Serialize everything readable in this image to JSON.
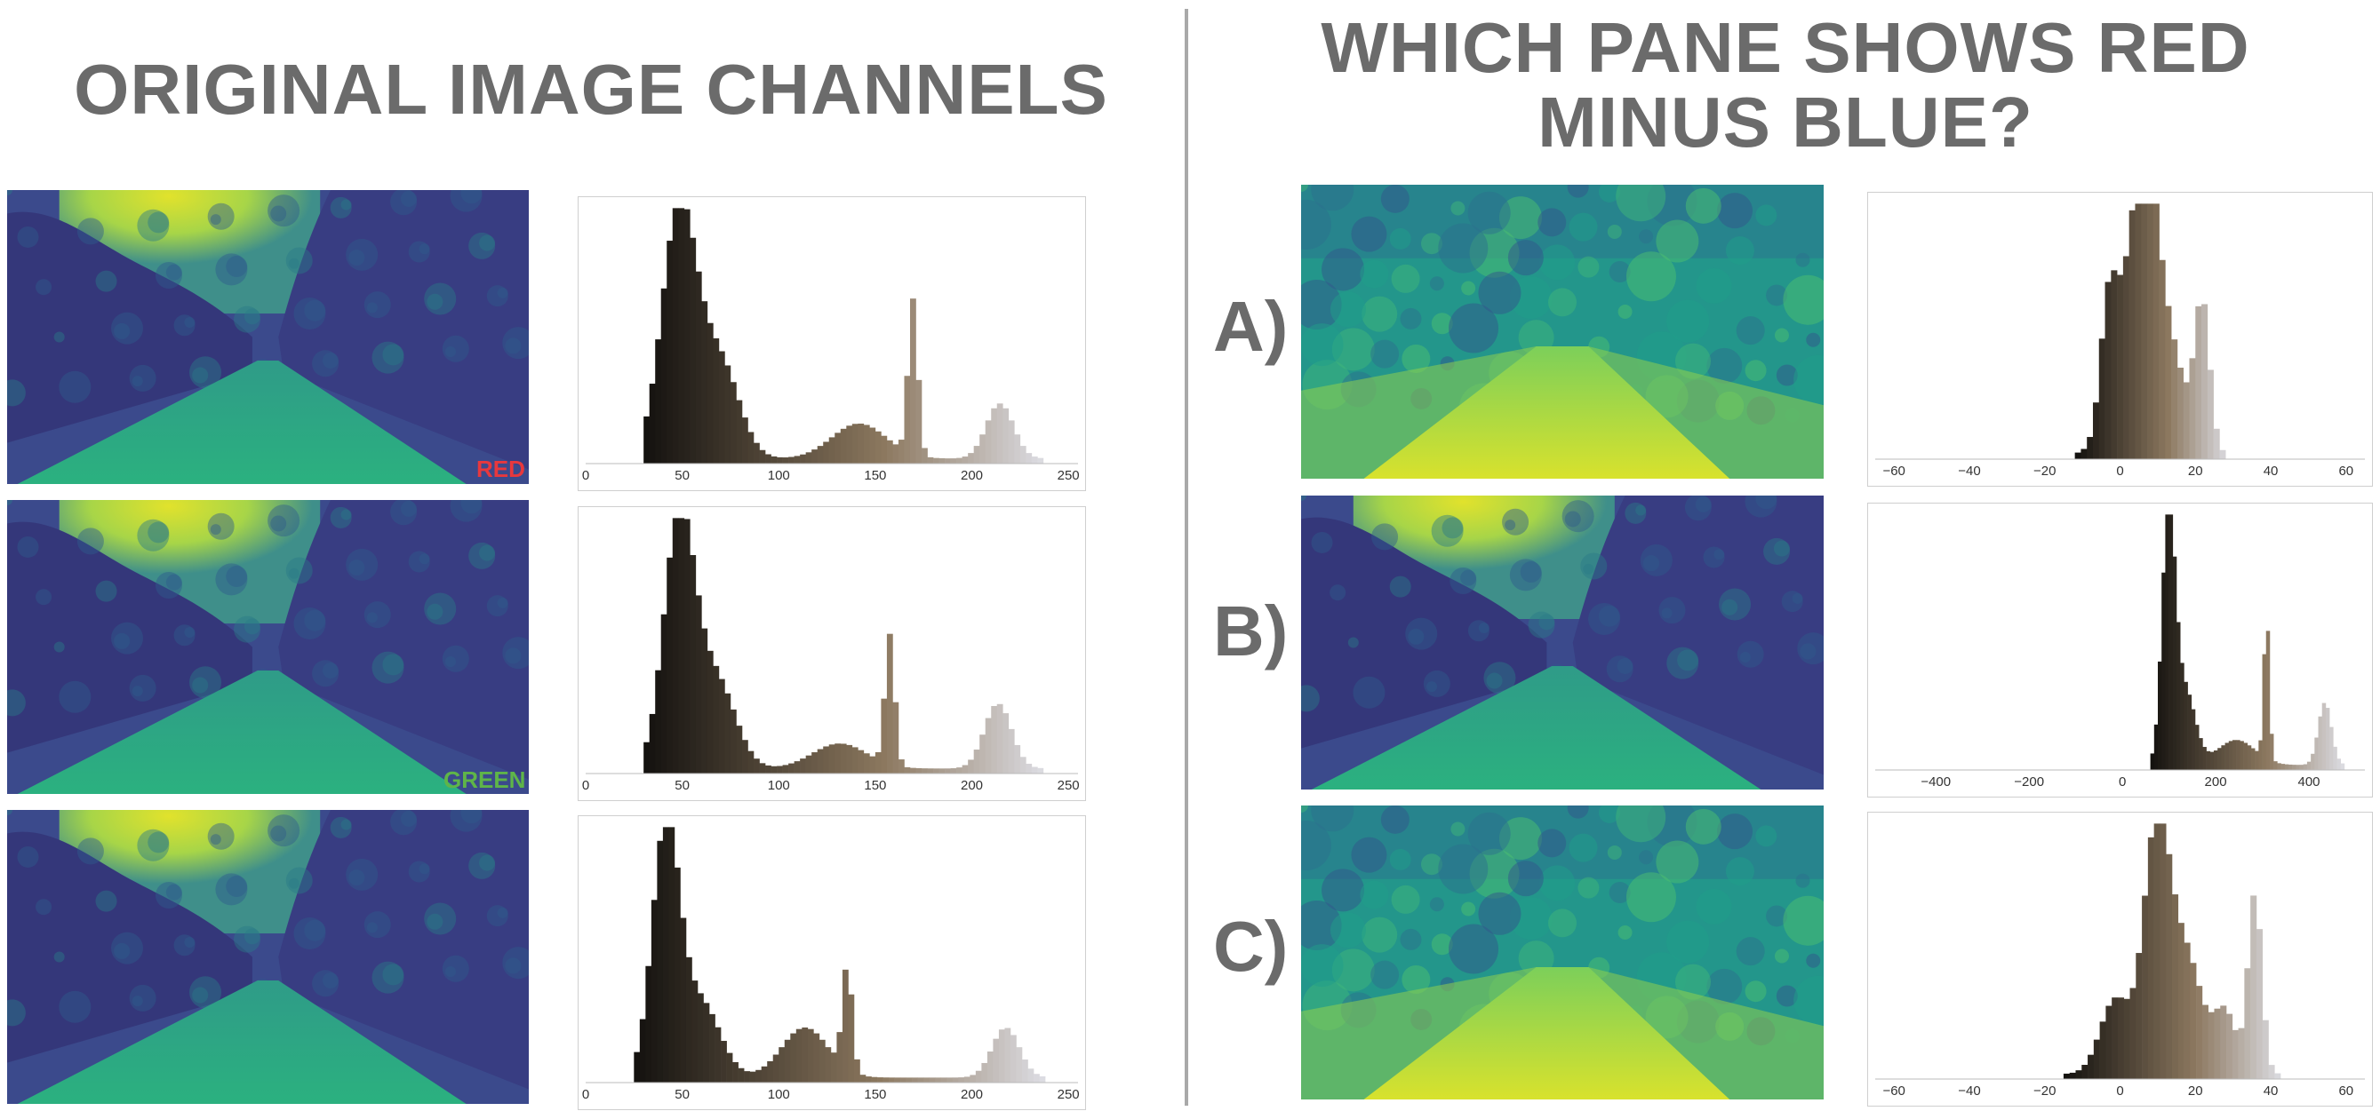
{
  "left_title": "ORIGINAL IMAGE CHANNELS",
  "right_title_line1": "WHICH PANE SHOWS RED",
  "right_title_line2": "MINUS BLUE?",
  "channels": [
    {
      "label": "RED",
      "label_color": "#e8383d",
      "scene": "road"
    },
    {
      "label": "GREEN",
      "label_color": "#5fb548",
      "scene": "road"
    },
    {
      "label": "",
      "label_color": "",
      "scene": "road"
    }
  ],
  "options": [
    {
      "label": "A)",
      "scene": "diff"
    },
    {
      "label": "B)",
      "scene": "road"
    },
    {
      "label": "C)",
      "scene": "diff"
    }
  ],
  "colors": {
    "title": "#6b6b6b",
    "divider": "#a9a9a9",
    "viridis_dark": "#3b2f7a",
    "viridis_mid": "#22a08b",
    "viridis_bright": "#e1e22c"
  },
  "chart_data": [
    {
      "type": "bar",
      "name": "red channel histogram",
      "x_ticks": [
        0,
        50,
        100,
        150,
        200,
        250
      ],
      "xlim": [
        0,
        255
      ],
      "bin_width": 3,
      "peaks": [
        {
          "x": 47,
          "h": 1.0,
          "w": 9
        },
        {
          "x": 68,
          "h": 0.38,
          "w": 10
        },
        {
          "x": 140,
          "h": 0.14,
          "w": 14
        },
        {
          "x": 168,
          "h": 0.62,
          "w": 2.5
        },
        {
          "x": 213,
          "h": 0.22,
          "w": 7
        }
      ],
      "baseline": [
        [
          30,
          0.02
        ],
        [
          235,
          0.02
        ]
      ]
    },
    {
      "type": "bar",
      "name": "green channel histogram",
      "x_ticks": [
        0,
        50,
        100,
        150,
        200,
        250
      ],
      "xlim": [
        0,
        255
      ],
      "bin_width": 3,
      "peaks": [
        {
          "x": 47,
          "h": 1.0,
          "w": 8
        },
        {
          "x": 66,
          "h": 0.35,
          "w": 10
        },
        {
          "x": 130,
          "h": 0.1,
          "w": 14
        },
        {
          "x": 156,
          "h": 0.52,
          "w": 2.5
        },
        {
          "x": 212,
          "h": 0.26,
          "w": 7
        }
      ],
      "baseline": [
        [
          30,
          0.02
        ],
        [
          235,
          0.02
        ]
      ]
    },
    {
      "type": "bar",
      "name": "blue channel histogram",
      "x_ticks": [
        0,
        50,
        100,
        150,
        200,
        250
      ],
      "xlim": [
        0,
        255
      ],
      "bin_width": 3,
      "peaks": [
        {
          "x": 40,
          "h": 1.0,
          "w": 7
        },
        {
          "x": 58,
          "h": 0.3,
          "w": 10
        },
        {
          "x": 112,
          "h": 0.2,
          "w": 12
        },
        {
          "x": 134,
          "h": 0.42,
          "w": 2.5
        },
        {
          "x": 216,
          "h": 0.2,
          "w": 7
        }
      ],
      "baseline": [
        [
          25,
          0.02
        ],
        [
          235,
          0.02
        ]
      ]
    },
    {
      "type": "bar",
      "name": "option A histogram",
      "x_ticks": [
        -60,
        -40,
        -20,
        0,
        20,
        40,
        60
      ],
      "xlim": [
        -65,
        65
      ],
      "bin_width": 1.6,
      "peaks": [
        {
          "x": 6,
          "h": 1.0,
          "w": 3
        },
        {
          "x": 0,
          "h": 0.55,
          "w": 4
        },
        {
          "x": 12,
          "h": 0.45,
          "w": 4
        },
        {
          "x": 21,
          "h": 0.6,
          "w": 2
        },
        {
          "x": -4,
          "h": 0.35,
          "w": 2
        }
      ],
      "baseline": [
        [
          -12,
          0.02
        ],
        [
          28,
          0.02
        ]
      ]
    },
    {
      "type": "bar",
      "name": "option B histogram",
      "x_ticks": [
        -400,
        -200,
        0,
        200,
        400
      ],
      "xlim": [
        -530,
        520
      ],
      "bin_width": 8,
      "peaks": [
        {
          "x": 95,
          "h": 1.0,
          "w": 14
        },
        {
          "x": 130,
          "h": 0.3,
          "w": 22
        },
        {
          "x": 240,
          "h": 0.1,
          "w": 40
        },
        {
          "x": 305,
          "h": 0.58,
          "w": 6
        },
        {
          "x": 430,
          "h": 0.25,
          "w": 14
        }
      ],
      "baseline": [
        [
          60,
          0.02
        ],
        [
          470,
          0.02
        ]
      ]
    },
    {
      "type": "bar",
      "name": "option C histogram",
      "x_ticks": [
        -60,
        -40,
        -20,
        0,
        20,
        40,
        60
      ],
      "xlim": [
        -65,
        65
      ],
      "bin_width": 1.6,
      "peaks": [
        {
          "x": 9,
          "h": 1.0,
          "w": 3.5
        },
        {
          "x": 17,
          "h": 0.45,
          "w": 4
        },
        {
          "x": -2,
          "h": 0.3,
          "w": 4
        },
        {
          "x": 35,
          "h": 0.72,
          "w": 1.8
        },
        {
          "x": 27,
          "h": 0.25,
          "w": 3
        }
      ],
      "baseline": [
        [
          -15,
          0.02
        ],
        [
          42,
          0.02
        ]
      ]
    }
  ]
}
